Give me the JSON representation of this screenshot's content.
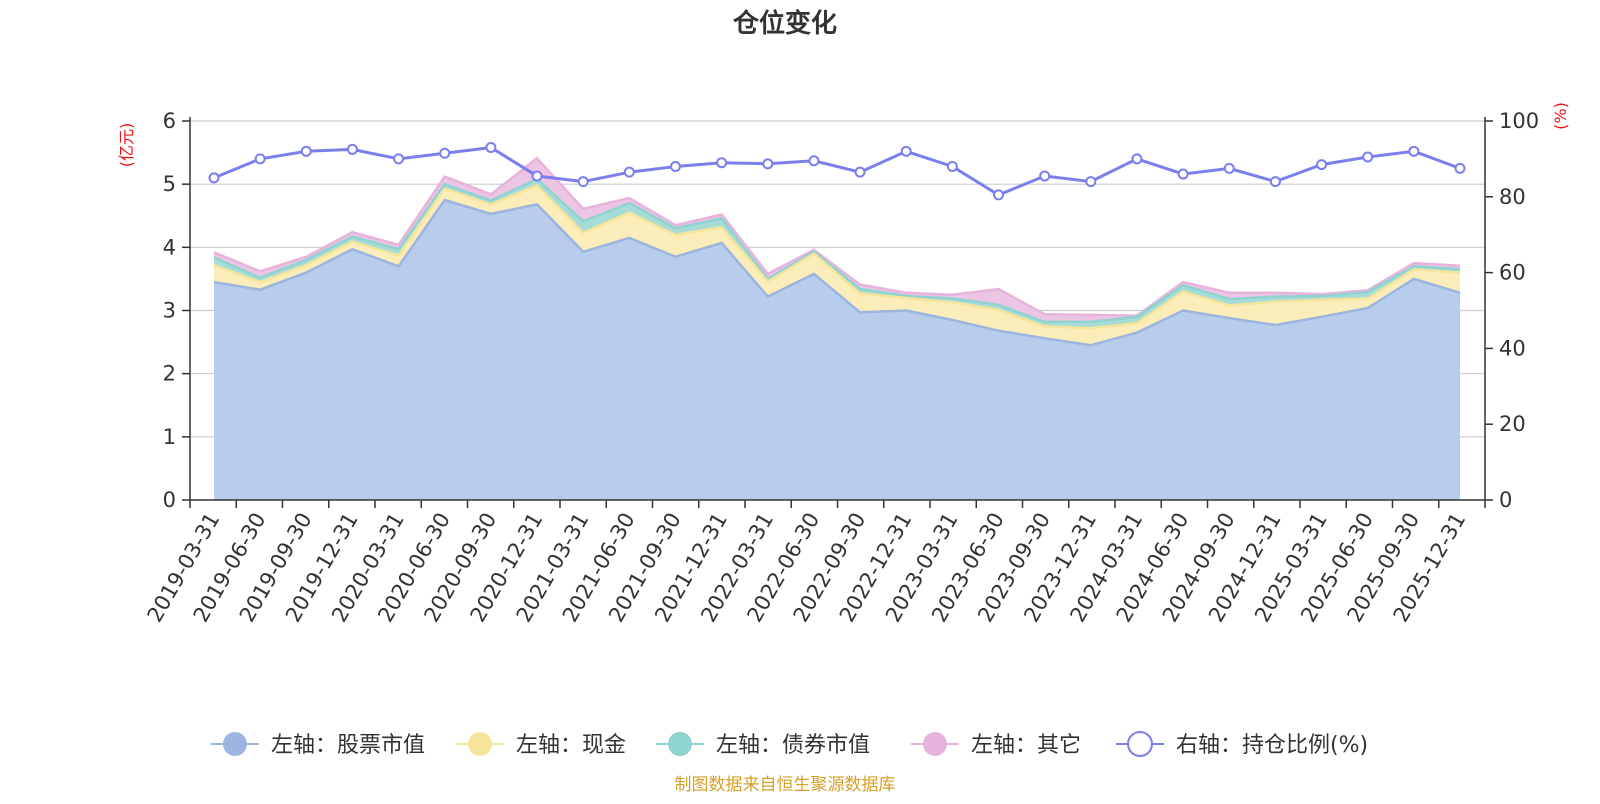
{
  "chart_data": {
    "type": "area",
    "title": "仓位变化",
    "left_axis_unit": "(亿元)",
    "right_axis_unit": "(%)",
    "left_ylim": [
      0,
      6
    ],
    "left_ticks": [
      "0",
      "1",
      "2",
      "3",
      "4",
      "5",
      "6"
    ],
    "right_ylim": [
      0,
      100
    ],
    "right_ticks": [
      "0",
      "20",
      "40",
      "60",
      "80",
      "100"
    ],
    "categories": [
      "2019-03-31",
      "2019-06-30",
      "2019-09-30",
      "2019-12-31",
      "2020-03-31",
      "2020-06-30",
      "2020-09-30",
      "2020-12-31",
      "2021-03-31",
      "2021-06-30",
      "2021-09-30",
      "2021-12-31",
      "2022-03-31",
      "2022-06-30",
      "2022-09-30",
      "2022-12-31",
      "2023-03-31",
      "2023-06-30",
      "2023-09-30",
      "2023-12-31",
      "2024-03-31",
      "2024-06-30",
      "2024-09-30",
      "2024-12-31",
      "2025-03-31",
      "2025-06-30",
      "2025-09-30",
      "2025-12-31"
    ],
    "stacked_series": [
      {
        "name": "左轴：股票市值",
        "color": "#9bb5e0",
        "fill": "#b8cdeb",
        "values": [
          3.45,
          3.33,
          3.6,
          3.97,
          3.7,
          4.75,
          4.53,
          4.68,
          3.93,
          4.15,
          3.85,
          4.07,
          3.22,
          3.58,
          2.97,
          3.0,
          2.85,
          2.68,
          2.56,
          2.45,
          2.65,
          3.0,
          2.88,
          2.77,
          2.9,
          3.04,
          3.5,
          3.28
        ]
      },
      {
        "name": "左轴：现金",
        "color": "#f5e49a",
        "fill": "#fbedb9",
        "values": [
          0.27,
          0.12,
          0.12,
          0.12,
          0.17,
          0.18,
          0.15,
          0.3,
          0.3,
          0.4,
          0.35,
          0.25,
          0.24,
          0.32,
          0.3,
          0.2,
          0.28,
          0.33,
          0.19,
          0.27,
          0.15,
          0.3,
          0.2,
          0.37,
          0.27,
          0.15,
          0.15,
          0.32
        ]
      },
      {
        "name": "左轴：债券市值",
        "color": "#8fd3d0",
        "fill": "#a5dcd8",
        "values": [
          0.12,
          0.07,
          0.08,
          0.08,
          0.1,
          0.07,
          0.06,
          0.1,
          0.18,
          0.15,
          0.1,
          0.14,
          0.04,
          0.03,
          0.07,
          0.03,
          0.06,
          0.08,
          0.07,
          0.1,
          0.1,
          0.1,
          0.1,
          0.08,
          0.06,
          0.1,
          0.05,
          0.05
        ]
      },
      {
        "name": "左轴：其它",
        "color": "#e6b3dc",
        "fill": "#ecc4e4",
        "values": [
          0.08,
          0.1,
          0.05,
          0.07,
          0.07,
          0.12,
          0.1,
          0.33,
          0.2,
          0.08,
          0.05,
          0.06,
          0.08,
          0.03,
          0.07,
          0.05,
          0.06,
          0.25,
          0.12,
          0.11,
          0.02,
          0.05,
          0.1,
          0.06,
          0.03,
          0.03,
          0.05,
          0.06
        ]
      }
    ],
    "ratio_series": {
      "name": "右轴：持仓比例(%)",
      "color": "#7b7fee",
      "values": [
        85,
        90,
        92,
        92.5,
        90,
        91.5,
        93,
        85.5,
        84,
        86.5,
        88,
        89,
        88.7,
        89.5,
        86.5,
        92,
        88,
        80.5,
        85.5,
        84,
        90,
        86,
        87.5,
        84,
        88.5,
        90.5,
        92,
        87.5
      ]
    },
    "legend": {
      "position": "bottom",
      "items": [
        {
          "label": "左轴：股票市值",
          "color": "#9bb5e0",
          "style": "area"
        },
        {
          "label": "左轴：现金",
          "color": "#f5e49a",
          "style": "area"
        },
        {
          "label": "左轴：债券市值",
          "color": "#8fd3d0",
          "style": "area"
        },
        {
          "label": "左轴：其它",
          "color": "#e6b3dc",
          "style": "area"
        },
        {
          "label": "右轴：持仓比例(%)",
          "color": "#7b7fee",
          "style": "line"
        }
      ]
    },
    "source": "制图数据来自恒生聚源数据库",
    "grid": true
  }
}
